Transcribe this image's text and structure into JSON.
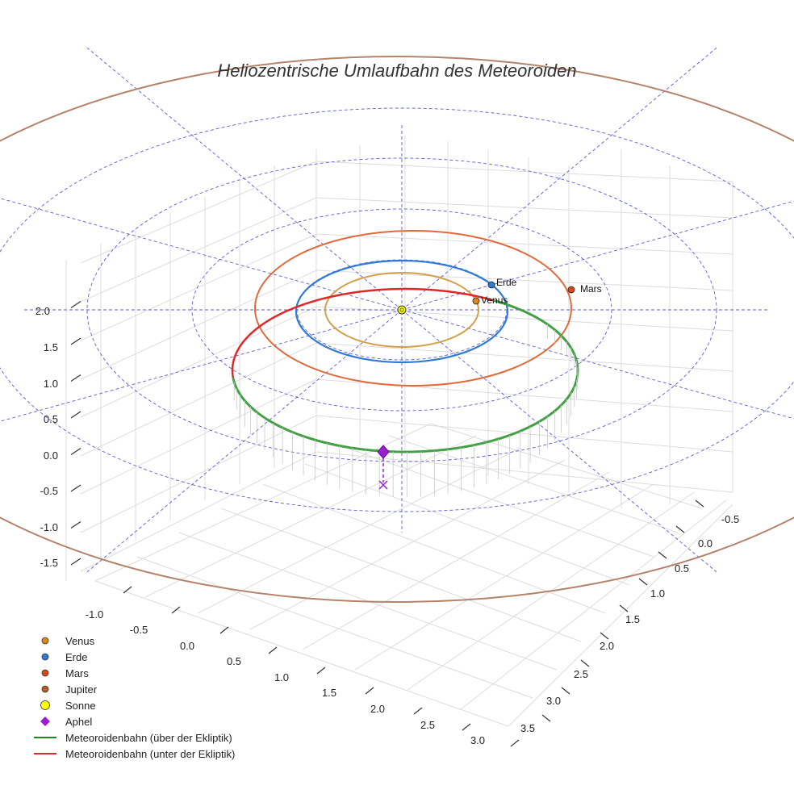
{
  "chart_data": {
    "type": "line",
    "title": "Heliozentrische Umlaufbahn des Meteoroiden",
    "z_ticks": [
      "-1.5",
      "-1.0",
      "-0.5",
      "0.0",
      "0.5",
      "1.0",
      "1.5",
      "2.0"
    ],
    "x_ticks": [
      "-1.0",
      "-0.5",
      "0.0",
      "0.5",
      "1.0",
      "1.5",
      "2.0",
      "2.5",
      "3.0"
    ],
    "y_ticks": [
      "-0.5",
      "0.0",
      "0.5",
      "1.0",
      "1.5",
      "2.0",
      "2.5",
      "3.0",
      "3.5"
    ],
    "planets": [
      {
        "name": "Venus",
        "label": "Venus",
        "orbit_radius_au": 0.72,
        "color": "#d4a04a"
      },
      {
        "name": "Erde",
        "label": "Erde",
        "orbit_radius_au": 1.0,
        "color": "#2f7bd6"
      },
      {
        "name": "Mars",
        "label": "Mars",
        "orbit_radius_au": 1.52,
        "color": "#e06a3a"
      },
      {
        "name": "Jupiter",
        "label": "",
        "orbit_radius_au": 5.2,
        "color": "#b5836a"
      }
    ],
    "meteoroid_orbit": {
      "above_ecliptic_color": "#43a047",
      "below_ecliptic_color": "#e02828"
    },
    "aphel_color": "#9b1fd1",
    "sun_color": "#ffff00",
    "grid": true
  },
  "legend": {
    "items": [
      {
        "label": "Venus",
        "marker": "circle",
        "color": "#d98c1a"
      },
      {
        "label": "Erde",
        "marker": "circle",
        "color": "#2f7bd6"
      },
      {
        "label": "Mars",
        "marker": "circle",
        "color": "#d9481a"
      },
      {
        "label": "Jupiter",
        "marker": "circle",
        "color": "#b5601e"
      },
      {
        "label": "Sonne",
        "marker": "circle-lg",
        "color": "#ffff00"
      },
      {
        "label": "Aphel",
        "marker": "diamond",
        "color": "#9b1fd1"
      },
      {
        "label": "Meteoroidenbahn (über der Ekliptik)",
        "marker": "line",
        "color": "#1a8a1a"
      },
      {
        "label": "Meteoroidenbahn (unter der Ekliptik)",
        "marker": "line",
        "color": "#e02828"
      }
    ]
  }
}
